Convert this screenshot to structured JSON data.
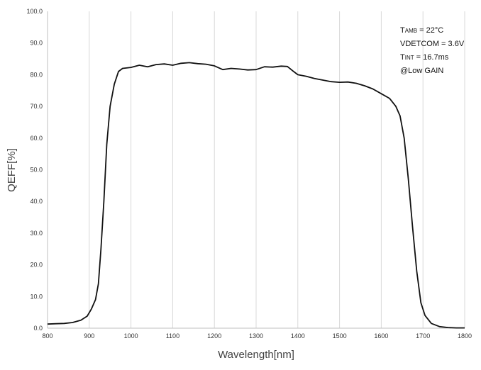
{
  "chart_data": {
    "type": "line",
    "xlabel": "Wavelength[nm]",
    "ylabel": "QEFF[%]",
    "xlim": [
      800,
      1800
    ],
    "ylim": [
      0,
      100
    ],
    "x_ticks": [
      "800",
      "900",
      "1000",
      "1100",
      "1200",
      "1300",
      "1400",
      "1500",
      "1600",
      "1700",
      "1800"
    ],
    "y_ticks": [
      "0.0",
      "10.0",
      "20.0",
      "30.0",
      "40.0",
      "50.0",
      "60.0",
      "70.0",
      "80.0",
      "90.0",
      "100.0"
    ],
    "grid": "vertical",
    "line_color": "#111111",
    "annotations": [
      {
        "main": "T",
        "sub": "AMB",
        "rest": " = 22°C"
      },
      {
        "main": "VDETCOM = 3.6V",
        "sub": "",
        "rest": ""
      },
      {
        "main": "T",
        "sub": "INT",
        "rest": " = 16.7ms"
      },
      {
        "main": "@Low GAIN",
        "sub": "",
        "rest": ""
      }
    ],
    "series": [
      {
        "values": [
          [
            800,
            1.3
          ],
          [
            820,
            1.4
          ],
          [
            840,
            1.5
          ],
          [
            860,
            1.8
          ],
          [
            880,
            2.5
          ],
          [
            895,
            3.8
          ],
          [
            905,
            6.0
          ],
          [
            915,
            9.0
          ],
          [
            922,
            14.0
          ],
          [
            928,
            25.0
          ],
          [
            935,
            40.0
          ],
          [
            942,
            58.0
          ],
          [
            950,
            70.0
          ],
          [
            960,
            77.0
          ],
          [
            970,
            81.0
          ],
          [
            980,
            82.0
          ],
          [
            1000,
            82.3
          ],
          [
            1020,
            83.0
          ],
          [
            1040,
            82.5
          ],
          [
            1060,
            83.2
          ],
          [
            1080,
            83.4
          ],
          [
            1100,
            83.0
          ],
          [
            1120,
            83.6
          ],
          [
            1140,
            83.8
          ],
          [
            1160,
            83.5
          ],
          [
            1180,
            83.3
          ],
          [
            1200,
            82.8
          ],
          [
            1220,
            81.6
          ],
          [
            1240,
            82.0
          ],
          [
            1260,
            81.8
          ],
          [
            1280,
            81.5
          ],
          [
            1300,
            81.6
          ],
          [
            1320,
            82.5
          ],
          [
            1340,
            82.4
          ],
          [
            1360,
            82.7
          ],
          [
            1375,
            82.6
          ],
          [
            1390,
            81.0
          ],
          [
            1400,
            80.0
          ],
          [
            1420,
            79.5
          ],
          [
            1440,
            78.8
          ],
          [
            1460,
            78.3
          ],
          [
            1480,
            77.8
          ],
          [
            1500,
            77.6
          ],
          [
            1520,
            77.7
          ],
          [
            1540,
            77.3
          ],
          [
            1560,
            76.5
          ],
          [
            1580,
            75.5
          ],
          [
            1600,
            74.0
          ],
          [
            1620,
            72.5
          ],
          [
            1635,
            70.0
          ],
          [
            1645,
            67.0
          ],
          [
            1655,
            60.0
          ],
          [
            1665,
            47.0
          ],
          [
            1675,
            32.0
          ],
          [
            1685,
            18.0
          ],
          [
            1695,
            8.0
          ],
          [
            1705,
            4.0
          ],
          [
            1720,
            1.5
          ],
          [
            1740,
            0.5
          ],
          [
            1760,
            0.2
          ],
          [
            1780,
            0.1
          ],
          [
            1800,
            0.1
          ]
        ]
      }
    ]
  }
}
